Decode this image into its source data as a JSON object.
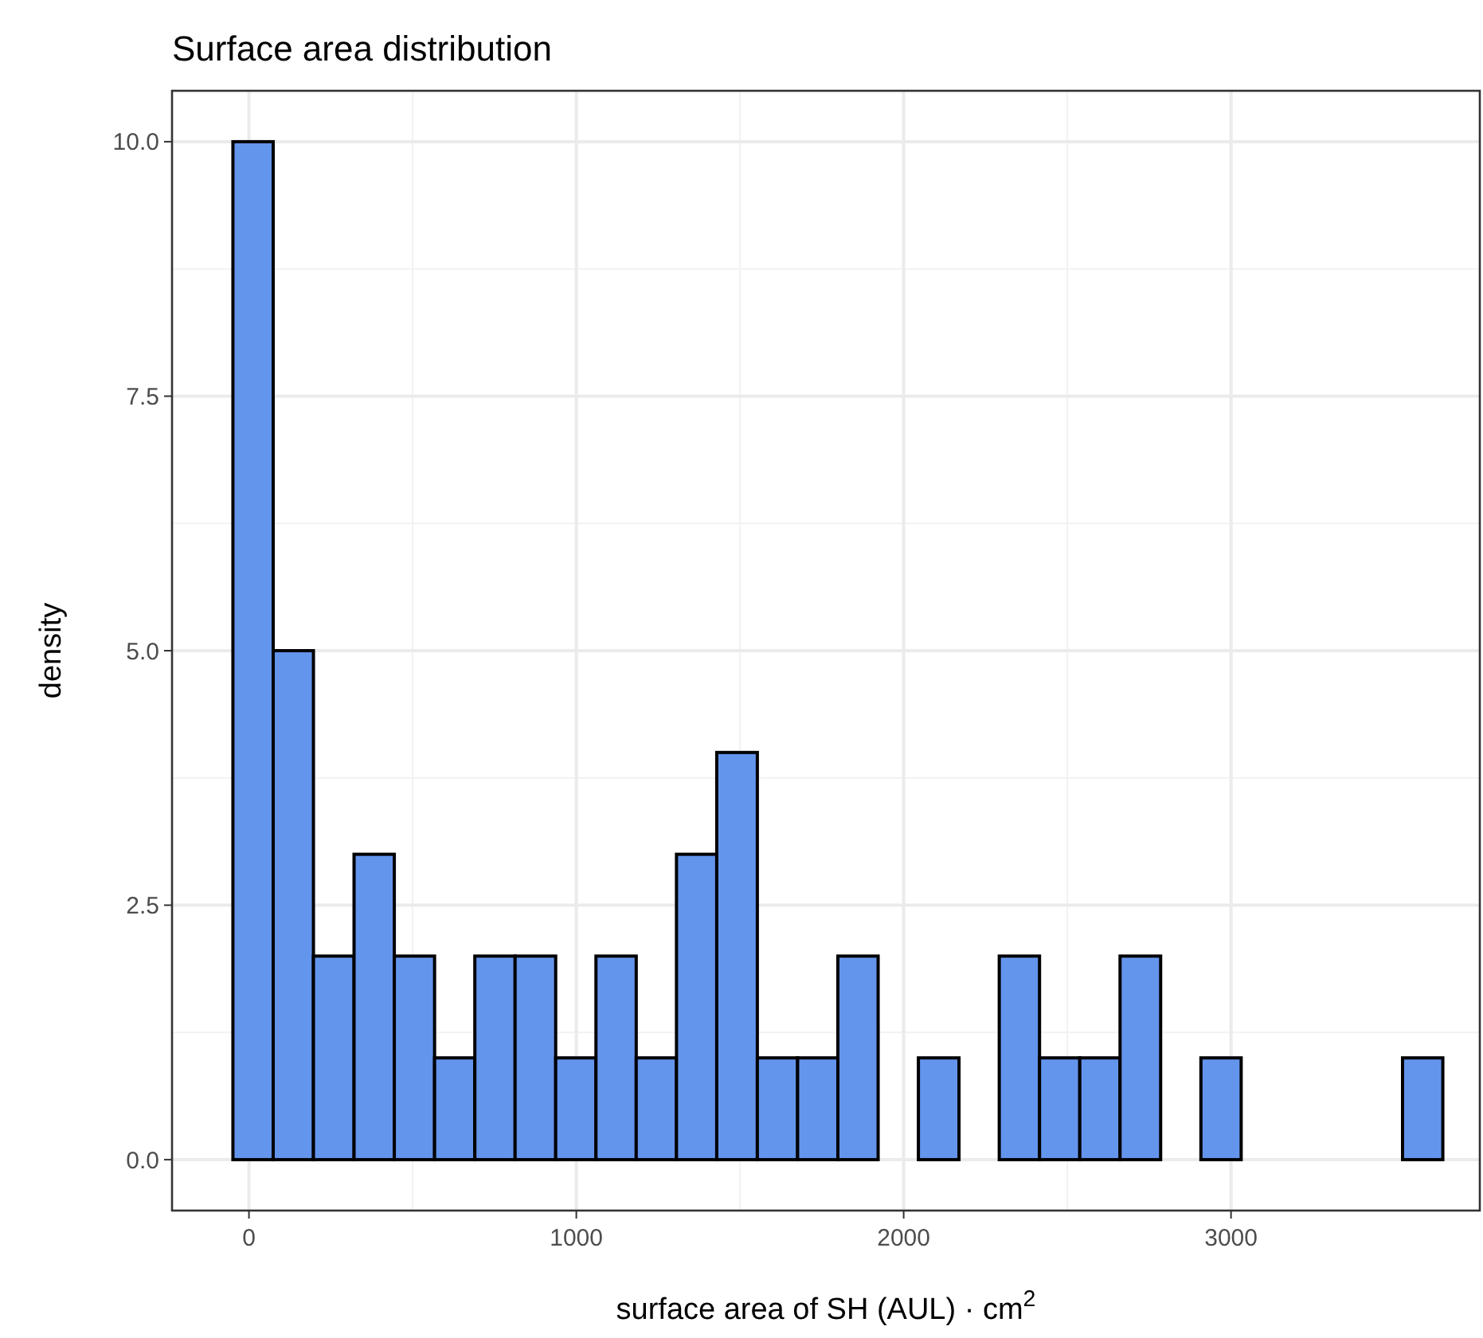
{
  "chart_data": {
    "type": "histogram",
    "title": "Surface area distribution",
    "xlabel": "surface area of SH (AUL) · cm$^{2}$",
    "ylabel": "density",
    "bins": [
      -49,
      74,
      197,
      321,
      444,
      567,
      690,
      813,
      937,
      1060,
      1183,
      1306,
      1429,
      1553,
      1676,
      1799,
      1922,
      2045,
      2169,
      2292,
      2415,
      2538,
      2661,
      2785,
      2908,
      3031,
      3154,
      3277,
      3401,
      3524,
      3647
    ],
    "values": [
      10,
      5,
      2,
      3,
      2,
      1,
      2,
      2,
      1,
      2,
      1,
      3,
      4,
      1,
      1,
      2,
      0,
      1,
      0,
      2,
      1,
      1,
      2,
      0,
      1,
      0,
      0,
      0,
      0,
      1
    ],
    "color": "#6495ed",
    "xlim": [
      -235,
      3760
    ],
    "xticks": [
      0,
      1000,
      2000,
      3000
    ],
    "ylim": [
      -0.5,
      10.5
    ],
    "yticks": [
      {
        "value": 0,
        "label": "0.0"
      },
      {
        "value": 2.5,
        "label": "2.5"
      },
      {
        "value": 5,
        "label": "5.0"
      },
      {
        "value": 7.5,
        "label": "7.5"
      },
      {
        "value": 10,
        "label": "10.0"
      }
    ],
    "grid": true
  }
}
